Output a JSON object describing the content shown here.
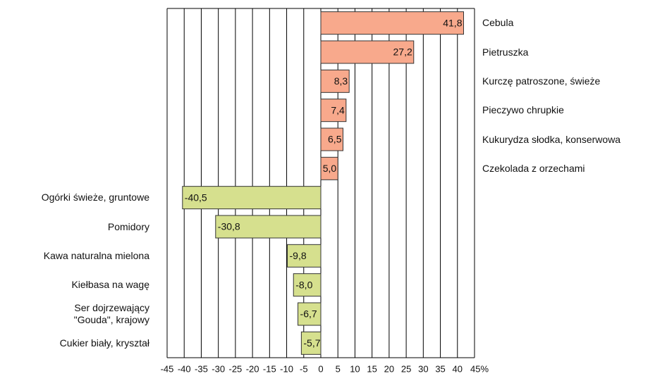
{
  "chart_data": {
    "type": "hbar",
    "categories": [
      "Cebula",
      "Pietruszka",
      "Kurczę patroszone, świeże",
      "Pieczywo chrupkie",
      "Kukurydza słodka, konserwowa",
      "Czekolada z orzechami",
      "Ogórki świeże, gruntowe",
      "Pomidory",
      "Kawa naturalna mielona",
      "Kiełbasa na wagę",
      "Ser dojrzewający \"Gouda\", krajowy",
      "Cukier biały, kryształ"
    ],
    "values": [
      41.8,
      27.2,
      8.3,
      7.4,
      6.5,
      5.0,
      -40.5,
      -30.8,
      -9.8,
      -8.0,
      -6.7,
      -5.7
    ],
    "value_labels": [
      "41,8",
      "27,2",
      "8,3",
      "7,4",
      "6,5",
      "5,0",
      "-40,5",
      "-30,8",
      "-9,8",
      "-8,0",
      "-6,7",
      "-5,7"
    ],
    "positive_color": "#f8a98c",
    "negative_color": "#d6e08e",
    "xlim": [
      -45,
      45
    ],
    "xticks": [
      -45,
      -40,
      -35,
      -30,
      -25,
      -20,
      -15,
      -10,
      -5,
      0,
      5,
      10,
      15,
      20,
      25,
      30,
      35,
      40,
      {
        "value": 45,
        "label": "45%"
      }
    ],
    "grid": true
  }
}
